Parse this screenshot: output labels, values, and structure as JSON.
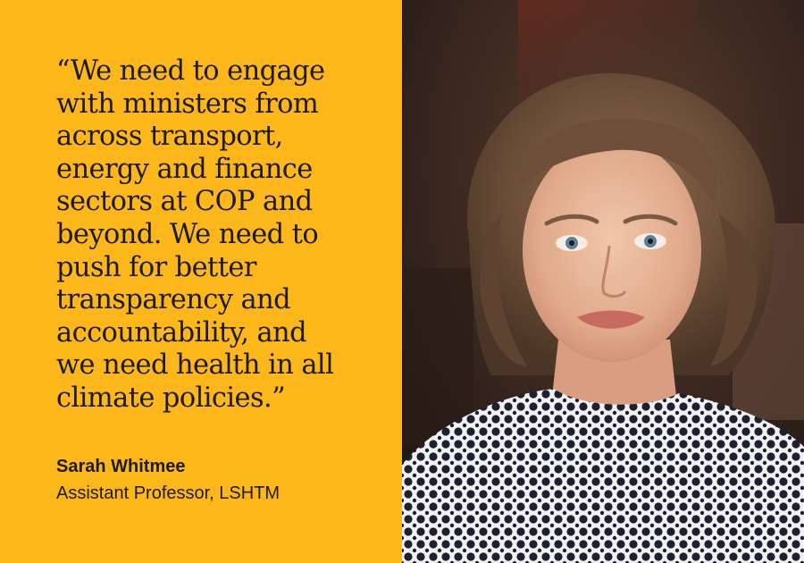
{
  "quote": {
    "lines": [
      "“We need to engage",
      "with ministers from",
      "across transport,",
      "energy and finance",
      "sectors at COP and",
      "beyond. We need to",
      "push for better",
      "transparency and",
      "accountability, and",
      "we need health in all",
      "climate policies.”"
    ]
  },
  "attribution": {
    "name": "Sarah Whitmee",
    "role": "Assistant Professor, LSHTM"
  },
  "colors": {
    "background": "#FDB71A",
    "text": "#1c1c1c"
  }
}
